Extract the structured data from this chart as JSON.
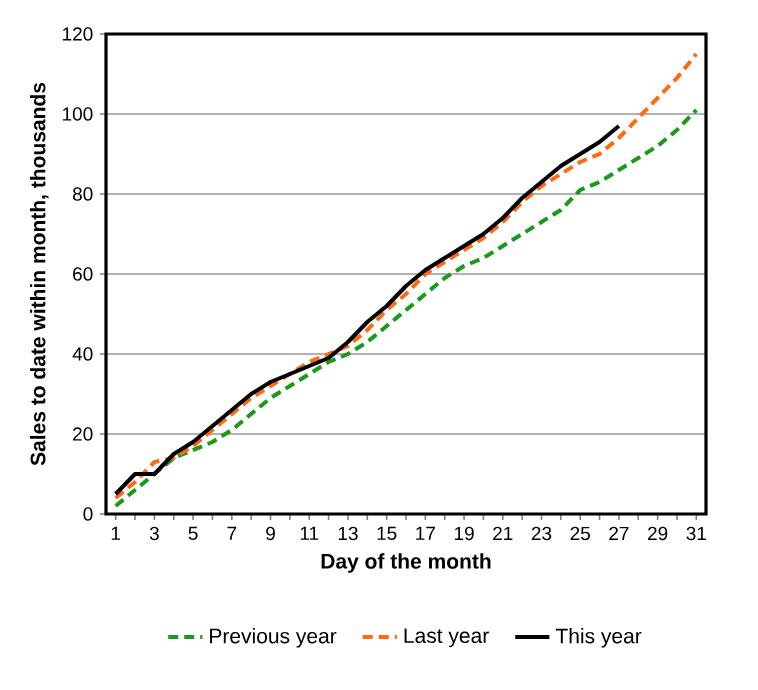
{
  "chart_data": {
    "type": "line",
    "xlabel": "Day of the month",
    "ylabel": "Sales to date within month, thousands",
    "categories": [
      "1",
      null,
      "3",
      null,
      "5",
      null,
      "7",
      null,
      "9",
      null,
      "11",
      null,
      "13",
      null,
      "15",
      null,
      "17",
      null,
      "19",
      null,
      "21",
      null,
      "23",
      null,
      "25",
      null,
      "27",
      null,
      "29",
      null,
      "31"
    ],
    "series": [
      {
        "name": "Previous year",
        "color": "#1a9a1a",
        "line_style": "dashed",
        "values": [
          2,
          6,
          10,
          14,
          16,
          18,
          21,
          25,
          29,
          32,
          35,
          38,
          40,
          43,
          47,
          51,
          55,
          59,
          62,
          64,
          67,
          70,
          73,
          76,
          81,
          83,
          86,
          89,
          92,
          96,
          101
        ]
      },
      {
        "name": "Last year",
        "color": "#ff6a10",
        "line_style": "dashed",
        "values": [
          4,
          8,
          13,
          14,
          17,
          21,
          25,
          29,
          32,
          35,
          38,
          40,
          42,
          46,
          51,
          55,
          60,
          63,
          66,
          69,
          73,
          78,
          82,
          85,
          88,
          90,
          94,
          99,
          104,
          109,
          115
        ]
      },
      {
        "name": "This year",
        "color": "#000000",
        "line_style": "solid",
        "values": [
          5,
          10,
          10,
          15,
          18,
          22,
          26,
          30,
          33,
          35,
          37,
          39,
          43,
          48,
          52,
          57,
          61,
          64,
          67,
          70,
          74,
          79,
          83,
          87,
          90,
          93,
          97,
          null,
          null,
          null,
          null
        ]
      }
    ],
    "ylim": [
      0,
      120
    ],
    "yticks": [
      0,
      20,
      40,
      60,
      80,
      100,
      120
    ],
    "grid": "y",
    "legend": "bottom",
    "marker": "none"
  }
}
